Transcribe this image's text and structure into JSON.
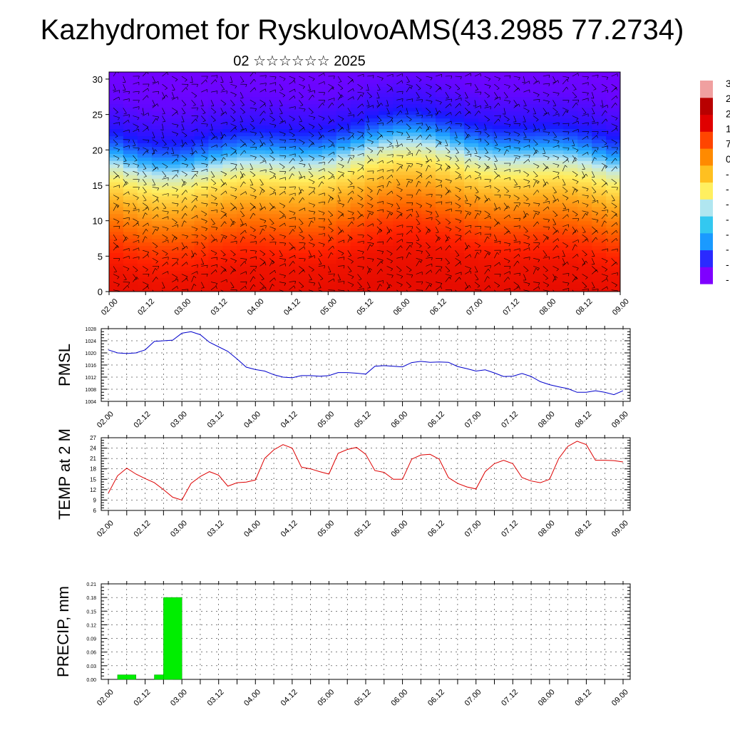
{
  "header": {
    "title": "Kazhydromet for RyskulovoAMS(43.2985 77.2734)",
    "subtitle": "02 ☆☆☆☆☆☆ 2025"
  },
  "colors": {
    "pmsl_line": "#0000cc",
    "temp_line": "#dd0000",
    "precip_bar": "#00ee00",
    "grid": "#000000"
  },
  "chart_data": [
    {
      "type": "heatmap",
      "name": "cross-section",
      "x_tick_labels": [
        "02.00",
        "02.12",
        "03.00",
        "03.12",
        "04.00",
        "04.12",
        "05.00",
        "05.12",
        "06.00",
        "06.12",
        "07.00",
        "07.12",
        "08.00",
        "08.12",
        "09.00"
      ],
      "y_ticks": [
        0,
        5,
        10,
        15,
        20,
        25,
        30
      ],
      "ylim": [
        0,
        31
      ],
      "overlay": "wind barbs",
      "colorbar": {
        "colors_bottom_to_top": [
          "#7f00ff",
          "#2a2aff",
          "#1a9aff",
          "#33c8f0",
          "#b0e6f0",
          "#ffef60",
          "#ffc020",
          "#ff8a00",
          "#ff4500",
          "#e00000",
          "#b80000",
          "#f0a0a0"
        ],
        "labels_visible": [
          "3",
          "2",
          "2",
          "1",
          "7",
          "0",
          "-",
          "-",
          "-",
          "-",
          "-",
          "-",
          "-",
          "-"
        ]
      },
      "bands_height_to_temp": [
        [
          0,
          0.95
        ],
        [
          4,
          0.92
        ],
        [
          8,
          0.82
        ],
        [
          11,
          0.72
        ],
        [
          14,
          0.6
        ],
        [
          16,
          0.52
        ],
        [
          18,
          0.42
        ],
        [
          20,
          0.3
        ],
        [
          22,
          0.2
        ],
        [
          24,
          0.12
        ],
        [
          26,
          0.08
        ],
        [
          28,
          0.04
        ],
        [
          31,
          0.02
        ]
      ]
    },
    {
      "type": "line",
      "name": "PMSL",
      "ylabel": "PMSL",
      "y_ticks": [
        1004,
        1008,
        1012,
        1016,
        1020,
        1024,
        1028
      ],
      "ylim": [
        1004,
        1028
      ],
      "x_tick_labels": [
        "02.00",
        "02.12",
        "03.00",
        "03.12",
        "04.00",
        "04.12",
        "05.00",
        "05.12",
        "06.00",
        "06.12",
        "07.00",
        "07.12",
        "08.00",
        "08.12",
        "09.00"
      ],
      "x": [
        0,
        3,
        6,
        9,
        12,
        15,
        18,
        21,
        24,
        27,
        30,
        33,
        36,
        39,
        42,
        45,
        48,
        51,
        54,
        57,
        60,
        63,
        66,
        69,
        72,
        75,
        78,
        81,
        84,
        87,
        90,
        93,
        96,
        99,
        102,
        105,
        108,
        111,
        114,
        117,
        120,
        123,
        126,
        129,
        132,
        135,
        138,
        141,
        144,
        147,
        150,
        153,
        156,
        159,
        162,
        165,
        168
      ],
      "values": [
        1021,
        1020,
        1019.8,
        1020,
        1021,
        1023.8,
        1024,
        1024.2,
        1026.5,
        1027,
        1026,
        1023.5,
        1022,
        1020.5,
        1018,
        1015.3,
        1014.5,
        1014,
        1012.8,
        1012,
        1011.8,
        1012.5,
        1012.5,
        1012.3,
        1012.5,
        1013.5,
        1013.5,
        1013.3,
        1013,
        1015.6,
        1015.8,
        1015.6,
        1015.4,
        1016.8,
        1017.2,
        1016.9,
        1017,
        1016.9,
        1015.5,
        1014.8,
        1014,
        1014.4,
        1013.4,
        1012.2,
        1012.3,
        1013.2,
        1012.2,
        1010.5,
        1009.5,
        1008.8,
        1008.2,
        1007,
        1007,
        1007.5,
        1007,
        1006.2,
        1007.5
      ]
    },
    {
      "type": "line",
      "name": "TEMP at 2 M",
      "ylabel": "TEMP at 2 M",
      "y_ticks": [
        6,
        9,
        12,
        15,
        18,
        21,
        24,
        27
      ],
      "ylim": [
        6,
        27
      ],
      "x_tick_labels": [
        "02.00",
        "02.12",
        "03.00",
        "03.12",
        "04.00",
        "04.12",
        "05.00",
        "05.12",
        "06.00",
        "06.12",
        "07.00",
        "07.12",
        "08.00",
        "08.12",
        "09.00"
      ],
      "x": [
        0,
        3,
        6,
        9,
        12,
        15,
        18,
        21,
        24,
        27,
        30,
        33,
        36,
        39,
        42,
        45,
        48,
        51,
        54,
        57,
        60,
        63,
        66,
        69,
        72,
        75,
        78,
        81,
        84,
        87,
        90,
        93,
        96,
        99,
        102,
        105,
        108,
        111,
        114,
        117,
        120,
        123,
        126,
        129,
        132,
        135,
        138,
        141,
        144,
        147,
        150,
        153,
        156,
        159,
        162,
        165,
        168
      ],
      "values": [
        11,
        16,
        18.2,
        16.5,
        15.2,
        14,
        12,
        9.8,
        9,
        13.8,
        15.8,
        17.2,
        16.2,
        13,
        14,
        14.2,
        14.8,
        21,
        23.5,
        25,
        24,
        18.5,
        18,
        17.2,
        16.5,
        22.5,
        23.6,
        24.2,
        22.2,
        17.5,
        17,
        15,
        15,
        20.8,
        22,
        22.2,
        20.8,
        15.5,
        13.8,
        12.8,
        12.2,
        17.2,
        19.5,
        20.5,
        19.5,
        15.5,
        14.5,
        14,
        15,
        21,
        24.5,
        26,
        25,
        20.5,
        20.5,
        20.4,
        20
      ]
    },
    {
      "type": "bar",
      "name": "PRECIP, mm",
      "ylabel": "PRECIP, mm",
      "y_tick_labels": [
        "0.00",
        "0.03",
        "0.06",
        "0.09",
        "0.12",
        "0.15",
        "0.18",
        "0.21"
      ],
      "y_ticks": [
        0,
        0.03,
        0.06,
        0.09,
        0.12,
        0.15,
        0.18,
        0.21
      ],
      "ylim": [
        0,
        0.21
      ],
      "x_tick_labels": [
        "02.00",
        "02.12",
        "03.00",
        "03.12",
        "04.00",
        "04.12",
        "05.00",
        "05.12",
        "06.00",
        "06.12",
        "07.00",
        "07.12",
        "08.00",
        "08.12",
        "09.00"
      ],
      "bars": [
        {
          "x": 6,
          "value": 0.01
        },
        {
          "x": 18,
          "value": 0.01
        },
        {
          "x": 21,
          "value": 0.18
        }
      ]
    }
  ]
}
